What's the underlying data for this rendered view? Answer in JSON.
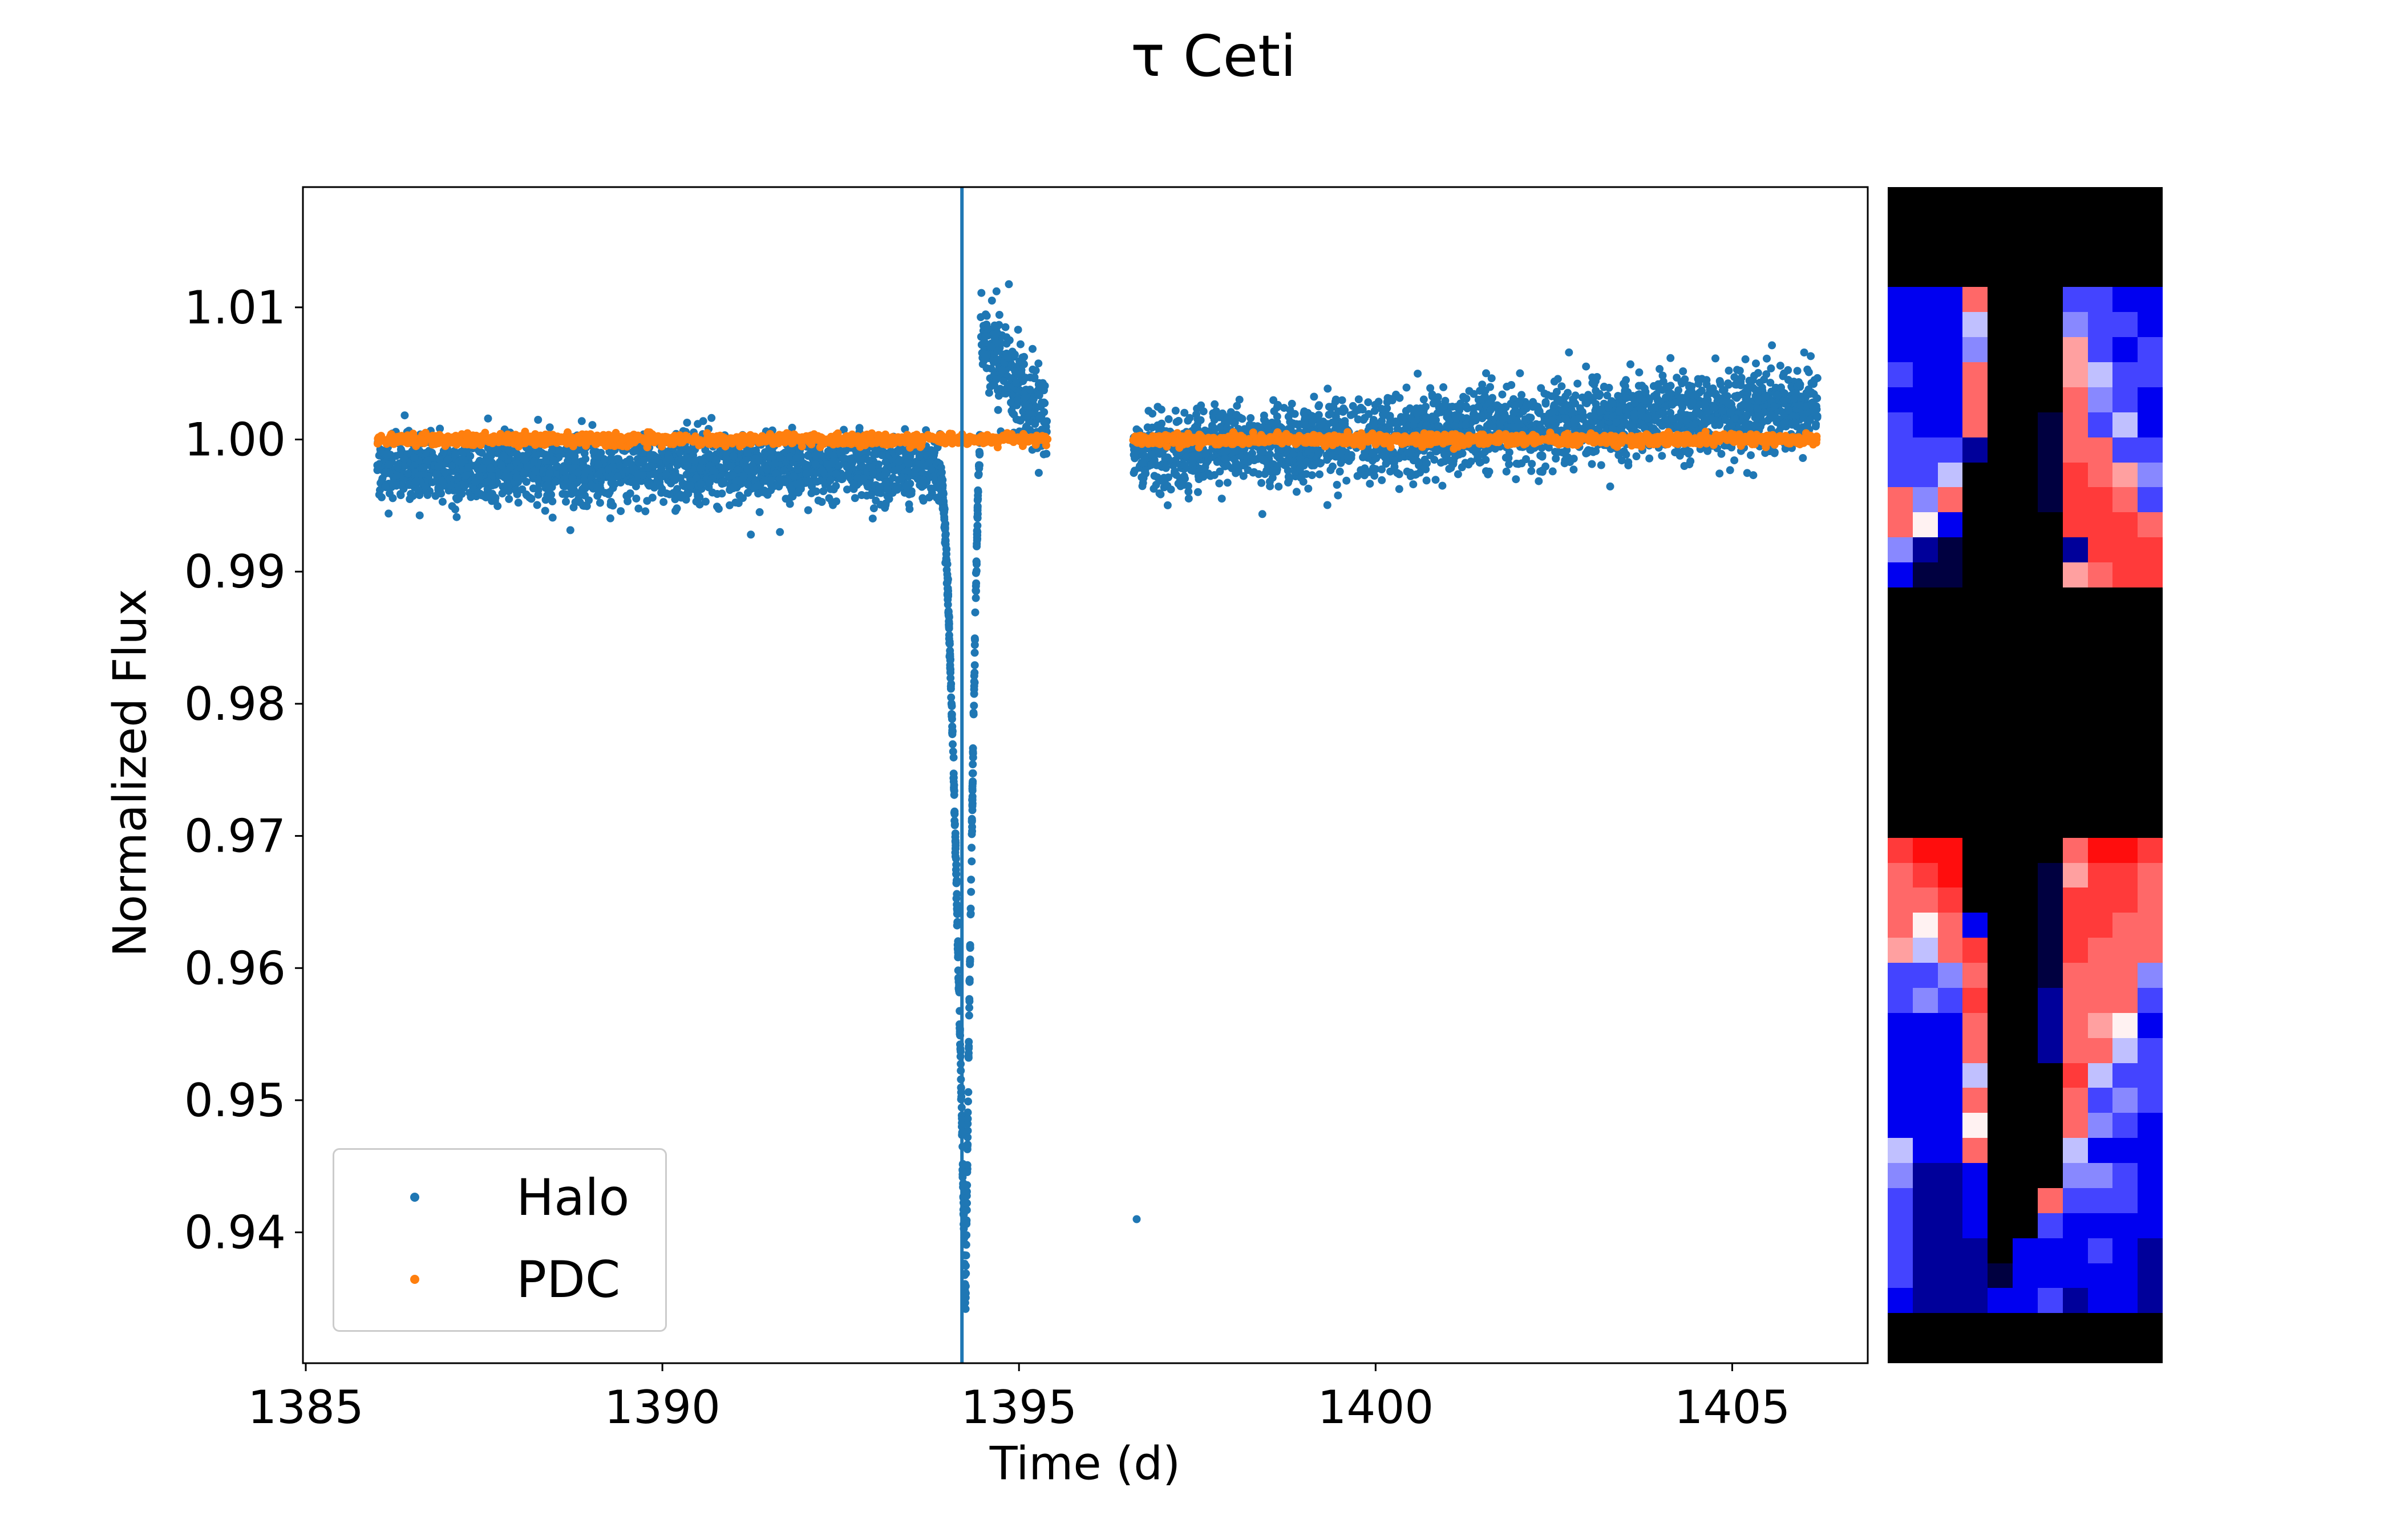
{
  "chart_data": [
    {
      "type": "scatter",
      "title": "τ Ceti",
      "xlabel": "Time (d)",
      "ylabel": "Normalized Flux",
      "xlim": [
        1384.96,
        1406.9
      ],
      "ylim": [
        0.9301,
        1.0191
      ],
      "x_ticks": [
        "1385",
        "1390",
        "1395",
        "1400",
        "1405"
      ],
      "y_ticks": [
        "0.94",
        "0.95",
        "0.96",
        "0.97",
        "0.98",
        "0.99",
        "1.00",
        "1.01"
      ],
      "grid": false,
      "legend_position": "bottom-left",
      "vertical_line": {
        "x": 1394.2,
        "color": "#1f77b4"
      },
      "series": [
        {
          "name": "Halo",
          "color": "#1f77b4",
          "segments": [
            {
              "t_start": 1386.0,
              "t_end": 1393.9,
              "flux_start": 0.9977,
              "flux_end": 0.9979,
              "scatter": 0.0012
            },
            {
              "t_start": 1394.45,
              "t_end": 1395.4,
              "flux_start": 1.008,
              "flux_end": 1.001,
              "scatter": 0.0018
            },
            {
              "t_start": 1396.6,
              "t_end": 1406.2,
              "flux_start": 0.9988,
              "flux_end": 1.0025,
              "scatter": 0.0015
            }
          ],
          "dip": {
            "t_start": 1393.9,
            "t_min": 1394.25,
            "t_end": 1394.45,
            "flux_min": 0.934
          },
          "outliers": [
            {
              "t": 1396.65,
              "flux": 0.941
            }
          ]
        },
        {
          "name": "PDC",
          "color": "#ff7f0e",
          "segments": [
            {
              "t_start": 1386.0,
              "t_end": 1395.4,
              "flux_start": 1.0,
              "flux_end": 1.0,
              "scatter": 0.0002
            },
            {
              "t_start": 1396.6,
              "t_end": 1406.2,
              "flux_start": 1.0,
              "flux_end": 1.0,
              "scatter": 0.0002
            }
          ]
        }
      ]
    },
    {
      "type": "heatmap",
      "colormap": "bwr",
      "masked_color": "#000000",
      "legend_codes": {
        "K": "#000000",
        "N": "#000040",
        "D": "#00009a",
        "B": "#0000f0",
        "b": "#4444ff",
        "m": "#8888ff",
        "l": "#c0c0ff",
        "w": "#fff2f2",
        "p": "#ffa0a0",
        "r": "#ff6868",
        "R": "#ff3a3a",
        "X": "#ff0d0d"
      },
      "rows": [
        "KKKKKKKKKKK",
        "KKKKKKKKKKK",
        "KKKKKKKKKKK",
        "KKKKKKKKKKK",
        "BBBrKKKbbBB",
        "BBBlKKKmbbB",
        "BBBmKKKpbBb",
        "bBBrKKKplbb",
        "BBBrKKKrmbB",
        "bBBrKKNrblB",
        "bbbDKKNrrbb",
        "bblKKKNRrpm",
        "rmrKKKNRRrb",
        "rwBKKKKRRRr",
        "mDNKKKKDRRR",
        "BNNKKKKprRR",
        "KKKKKKKKKKK",
        "KKKKKKKKKKK",
        "KKKKKKKKKKK",
        "KKKKKKKKKKK",
        "KKKKKKKKKKK",
        "KKKKKKKKKKK",
        "KKKKKKKKKKK",
        "KKKKKKKKKKK",
        "KKKKKKKKKKK",
        "KKKKKKKKKKK",
        "RXXKKKKrXXR",
        "rRXKKKNpRRr",
        "rrRKKKNRRRr",
        "rwrBKKNRRrr",
        "plrRKKNRrrr",
        "bbmrKKNrrrm",
        "bmbRKKDrrrb",
        "BBBrKKDrpwB",
        "BBBrKKDrrlb",
        "BBBlKKKRlbb",
        "BBBrKKKrbmb",
        "BBBwKKKrmbB",
        "lBBrKKKlBBB",
        "mDDBKKKmmbB",
        "bDDBKKrbbbB",
        "bDDBKKbBBBB",
        "bDDDKBBBbBD",
        "bDDDNBBBBBD",
        "BDDDBBbDBBD",
        "KKKKKKKKKKK",
        "KKKKKKKKKKK"
      ]
    }
  ]
}
